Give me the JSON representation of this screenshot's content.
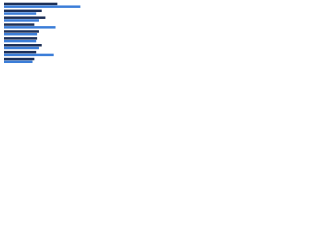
{
  "chart_data": {
    "type": "bar",
    "orientation": "horizontal",
    "categories": [
      null,
      null,
      null,
      null,
      null,
      null,
      null,
      null,
      null
    ],
    "series": [
      {
        "color": "#1c2f57",
        "values": [
          58,
          41,
          45,
          33,
          38,
          36,
          41,
          35,
          33
        ]
      },
      {
        "color": "#3b7dd8",
        "values": [
          83,
          35,
          38,
          56,
          36,
          35,
          38,
          54,
          31
        ]
      }
    ],
    "xlim": [
      0,
      100
    ]
  }
}
